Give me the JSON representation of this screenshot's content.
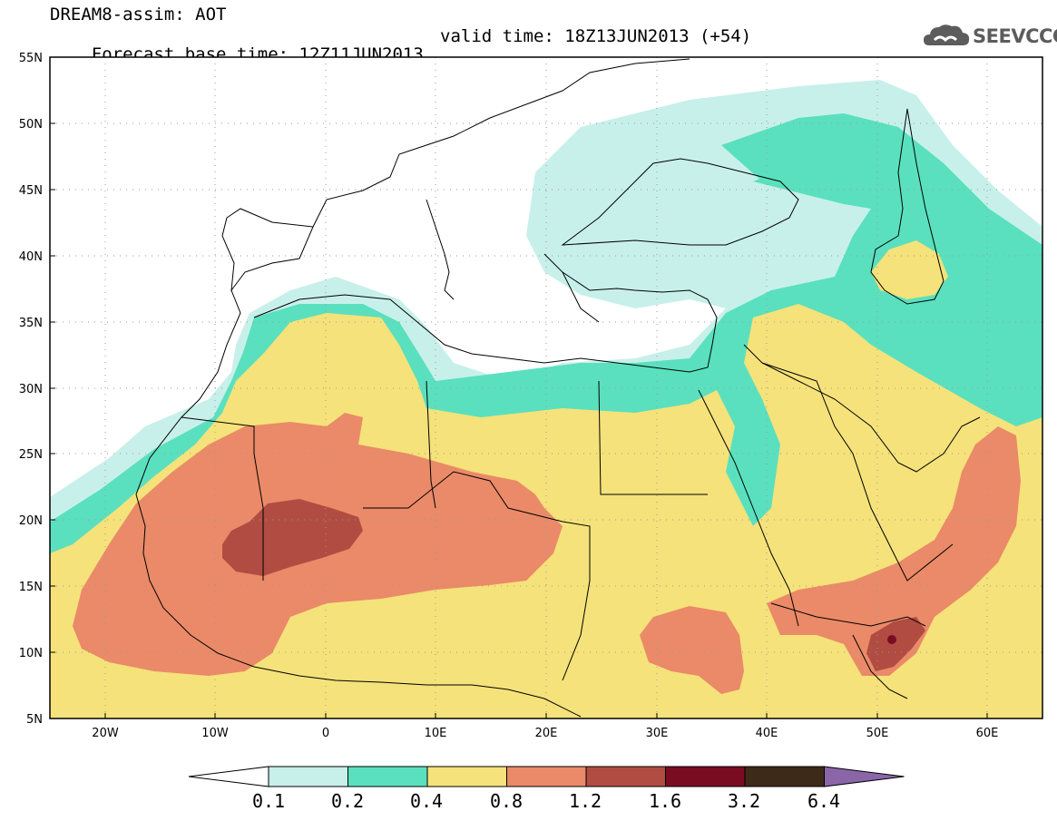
{
  "header": {
    "title": "DREAM8-assim: AOT",
    "base_time": "Forecast base time: 12Z11JUN2013",
    "valid_time": "valid time: 18Z13JUN2013 (+54)"
  },
  "logo": {
    "text": "SEEVCCC",
    "icon": "cloud-logo-icon"
  },
  "map": {
    "lat_ticks": [
      "55N",
      "50N",
      "45N",
      "40N",
      "35N",
      "30N",
      "25N",
      "20N",
      "15N",
      "10N",
      "5N"
    ],
    "lon_ticks": [
      "20W",
      "10W",
      "0",
      "10E",
      "20E",
      "30E",
      "40E",
      "50E",
      "60E"
    ],
    "lon_range": [
      -25,
      65
    ],
    "lat_range": [
      5,
      55
    ]
  },
  "colorbar": {
    "levels": [
      "0.1",
      "0.2",
      "0.4",
      "0.8",
      "1.2",
      "1.6",
      "3.2",
      "6.4"
    ],
    "colors": [
      "#ffffff",
      "#c8f0ea",
      "#5ae0be",
      "#f5e27a",
      "#ea8a68",
      "#b04c42",
      "#7a0c22",
      "#3e2a18",
      "#8a66a8"
    ]
  }
}
